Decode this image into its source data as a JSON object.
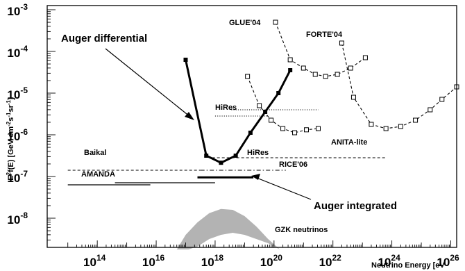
{
  "chart_data": {
    "type": "line",
    "xlabel": "Neutrino Energy [eV",
    "ylabel": "E2f(E) [GeV cm-2s-1sr-1]",
    "ylabel_parts": {
      "pre": "E",
      "sup1": "2",
      "mid": "f(E) [GeV cm",
      "sup2": "-2",
      "mid2": "s",
      "sup3": "-1",
      "mid3": "sr",
      "sup4": "-1",
      "post": "]"
    },
    "x_scale": "log10",
    "y_scale": "log10",
    "xlim_log10": [
      12.3,
      26.2
    ],
    "ylim_log10": [
      -8.7,
      -2.9
    ],
    "x_ticks": [
      {
        "base": "10",
        "exp": "14",
        "value": 14
      },
      {
        "base": "10",
        "exp": "16",
        "value": 16
      },
      {
        "base": "10",
        "exp": "18",
        "value": 18
      },
      {
        "base": "10",
        "exp": "20",
        "value": 20
      },
      {
        "base": "10",
        "exp": "22",
        "value": 22
      },
      {
        "base": "10",
        "exp": "24",
        "value": 24
      },
      {
        "base": "10",
        "exp": "26",
        "value": 26
      }
    ],
    "y_ticks": [
      {
        "base": "10",
        "exp": "-3",
        "value": -3
      },
      {
        "base": "10",
        "exp": "-4",
        "value": -4
      },
      {
        "base": "10",
        "exp": "-5",
        "value": -5
      },
      {
        "base": "10",
        "exp": "-6",
        "value": -6
      },
      {
        "base": "10",
        "exp": "-7",
        "value": -7
      },
      {
        "base": "10",
        "exp": "-8",
        "value": -8
      }
    ],
    "series": [
      {
        "name": "Auger differential",
        "style": "solid-thick",
        "marker": "filled-square",
        "points": [
          [
            17.0,
            -4.2
          ],
          [
            17.7,
            -6.5
          ],
          [
            18.2,
            -6.67
          ],
          [
            18.7,
            -6.5
          ],
          [
            19.2,
            -5.95
          ],
          [
            19.7,
            -5.45
          ],
          [
            20.15,
            -5.0
          ],
          [
            20.55,
            -4.45
          ]
        ]
      },
      {
        "name": "GLUE'04",
        "style": "dashed",
        "marker": "open-square",
        "points": [
          [
            20.05,
            -3.3
          ],
          [
            20.55,
            -4.2
          ],
          [
            21.0,
            -4.4
          ],
          [
            21.4,
            -4.55
          ],
          [
            21.75,
            -4.6
          ],
          [
            22.15,
            -4.55
          ],
          [
            22.6,
            -4.4
          ],
          [
            23.1,
            -4.15
          ]
        ]
      },
      {
        "name": "FORTE'04",
        "style": "dashed",
        "marker": "open-square",
        "points": [
          [
            22.3,
            -3.8
          ],
          [
            22.7,
            -5.1
          ],
          [
            23.3,
            -5.75
          ],
          [
            23.8,
            -5.85
          ],
          [
            24.3,
            -5.8
          ],
          [
            24.8,
            -5.65
          ],
          [
            25.3,
            -5.4
          ],
          [
            25.7,
            -5.15
          ],
          [
            26.2,
            -4.85
          ]
        ]
      },
      {
        "name": "ANITA-lite",
        "style": "dashed",
        "marker": "open-square",
        "points": [
          [
            19.1,
            -4.6
          ],
          [
            19.5,
            -5.3
          ],
          [
            19.9,
            -5.65
          ],
          [
            20.3,
            -5.85
          ],
          [
            20.7,
            -5.95
          ],
          [
            21.1,
            -5.88
          ],
          [
            21.5,
            -5.85
          ]
        ]
      },
      {
        "name": "HiRes",
        "style": "dotted",
        "marker": "none",
        "points": [
          [
            18.55,
            -5.4
          ],
          [
            21.5,
            -5.4
          ]
        ]
      },
      {
        "name": "HiRes",
        "style": "dotted",
        "marker": "none",
        "points": [
          [
            18.0,
            -5.55
          ],
          [
            19.8,
            -5.55
          ]
        ]
      },
      {
        "name": "Baikal",
        "style": "dashed",
        "marker": "none",
        "points": [
          [
            13.0,
            -6.85
          ],
          [
            17.5,
            -6.85
          ]
        ]
      },
      {
        "name": "RICE'06",
        "style": "dashdot",
        "marker": "none",
        "points": [
          [
            17.5,
            -6.85
          ],
          [
            20.4,
            -6.85
          ]
        ]
      },
      {
        "name": "HiRes",
        "style": "dashed",
        "marker": "none",
        "points": [
          [
            17.9,
            -6.55
          ],
          [
            23.8,
            -6.55
          ]
        ]
      },
      {
        "name": "AMANDA",
        "style": "solid-thin",
        "marker": "none",
        "points": [
          [
            13.0,
            -7.2
          ],
          [
            15.8,
            -7.2
          ]
        ]
      },
      {
        "name": "AMANDA",
        "style": "solid-thin",
        "marker": "none",
        "points": [
          [
            14.6,
            -7.15
          ],
          [
            18.0,
            -7.15
          ]
        ]
      },
      {
        "name": "Auger integrated",
        "style": "solid-thick",
        "marker": "none",
        "points": [
          [
            17.4,
            -7.02
          ],
          [
            19.3,
            -7.02
          ]
        ]
      }
    ],
    "band": {
      "name": "GZK neutrinos",
      "upper": [
        [
          16.7,
          -8.75
        ],
        [
          17.0,
          -8.4
        ],
        [
          17.4,
          -8.1
        ],
        [
          17.8,
          -7.88
        ],
        [
          18.2,
          -7.78
        ],
        [
          18.6,
          -7.8
        ],
        [
          19.0,
          -7.95
        ],
        [
          19.4,
          -8.2
        ],
        [
          19.8,
          -8.5
        ],
        [
          20.2,
          -8.75
        ]
      ],
      "lower": [
        [
          20.2,
          -8.75
        ],
        [
          19.8,
          -8.6
        ],
        [
          19.4,
          -8.5
        ],
        [
          19.0,
          -8.4
        ],
        [
          18.6,
          -8.35
        ],
        [
          18.2,
          -8.4
        ],
        [
          17.8,
          -8.5
        ],
        [
          17.4,
          -8.68
        ],
        [
          17.1,
          -8.75
        ]
      ]
    },
    "annotations": [
      {
        "name": "GLUE'04",
        "text": "GLUE'04"
      },
      {
        "name": "FORTE'04",
        "text": "FORTE'04"
      },
      {
        "name": "Auger differential",
        "text": "Auger differential"
      },
      {
        "name": "HiRes",
        "text": "HiRes"
      },
      {
        "name": "HiRes-low",
        "text": "HiRes"
      },
      {
        "name": "ANITA-lite",
        "text": "ANITA-lite"
      },
      {
        "name": "Baikal",
        "text": "Baikal"
      },
      {
        "name": "RICE'06",
        "text": "RICE'06"
      },
      {
        "name": "AMANDA",
        "text": "AMANDA"
      },
      {
        "name": "Auger integrated",
        "text": "Auger integrated"
      },
      {
        "name": "GZK neutrinos",
        "text": "GZK neutrinos"
      }
    ],
    "grid": false,
    "legend": "none"
  }
}
